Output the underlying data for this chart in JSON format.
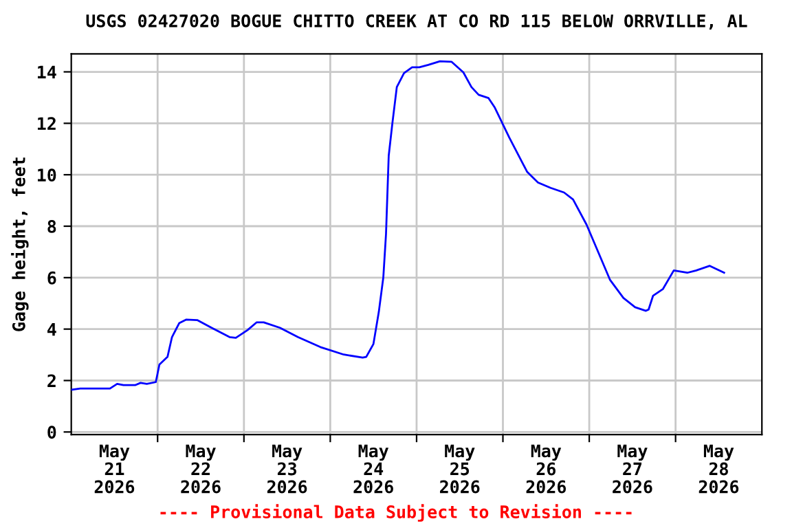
{
  "chart_data": {
    "type": "line",
    "title": "USGS 02427020 BOGUE CHITTO CREEK AT CO RD 115 BELOW ORRVILLE, AL",
    "ylabel": "Gage height, feet",
    "annotations": [
      "---- Provisional Data Subject to Revision ----"
    ],
    "x": [
      "2026-05-21T00:00",
      "2026-05-21T02:30",
      "2026-05-21T10:45",
      "2026-05-21T12:45",
      "2026-05-21T14:30",
      "2026-05-21T17:45",
      "2026-05-21T19:15",
      "2026-05-21T21:00",
      "2026-05-21T23:30",
      "2026-05-22T00:30",
      "2026-05-22T02:45",
      "2026-05-22T04:00",
      "2026-05-22T06:00",
      "2026-05-22T08:00",
      "2026-05-22T11:00",
      "2026-05-22T15:00",
      "2026-05-22T20:00",
      "2026-05-22T21:45",
      "2026-05-23T01:00",
      "2026-05-23T03:30",
      "2026-05-23T05:30",
      "2026-05-23T10:00",
      "2026-05-23T15:00",
      "2026-05-23T21:15",
      "2026-05-24T03:45",
      "2026-05-24T09:00",
      "2026-05-24T10:00",
      "2026-05-24T12:00",
      "2026-05-24T13:30",
      "2026-05-24T14:45",
      "2026-05-24T15:30",
      "2026-05-24T16:15",
      "2026-05-24T17:15",
      "2026-05-24T18:30",
      "2026-05-24T20:30",
      "2026-05-24T22:45",
      "2026-05-25T00:45",
      "2026-05-25T03:15",
      "2026-05-25T06:30",
      "2026-05-25T09:45",
      "2026-05-25T13:00",
      "2026-05-25T15:15",
      "2026-05-25T17:15",
      "2026-05-25T20:00",
      "2026-05-25T21:45",
      "2026-05-26T01:45",
      "2026-05-26T06:45",
      "2026-05-26T09:45",
      "2026-05-26T13:15",
      "2026-05-26T17:00",
      "2026-05-26T19:30",
      "2026-05-26T23:15",
      "2026-05-27T02:30",
      "2026-05-27T05:45",
      "2026-05-27T09:30",
      "2026-05-27T12:45",
      "2026-05-27T15:45",
      "2026-05-27T16:30",
      "2026-05-27T17:45",
      "2026-05-27T20:30",
      "2026-05-27T23:30",
      "2026-05-28T03:15",
      "2026-05-28T05:45",
      "2026-05-28T09:30",
      "2026-05-28T13:30"
    ],
    "series": [
      {
        "color": "#0000ff",
        "values": [
          1.64,
          1.69,
          1.69,
          1.87,
          1.82,
          1.82,
          1.91,
          1.87,
          1.94,
          2.62,
          2.92,
          3.69,
          4.23,
          4.37,
          4.35,
          4.05,
          3.69,
          3.66,
          3.96,
          4.26,
          4.26,
          4.05,
          3.69,
          3.3,
          3.01,
          2.89,
          2.92,
          3.42,
          4.67,
          6.01,
          7.7,
          10.74,
          11.98,
          13.41,
          13.95,
          14.18,
          14.18,
          14.27,
          14.41,
          14.39,
          13.98,
          13.41,
          13.11,
          12.98,
          12.61,
          11.45,
          10.11,
          9.7,
          9.49,
          9.31,
          9.04,
          8.06,
          6.99,
          5.92,
          5.21,
          4.85,
          4.71,
          4.76,
          5.3,
          5.56,
          6.28,
          6.19,
          6.28,
          6.46,
          6.19
        ]
      }
    ],
    "xlim": [
      "2026-05-21T00:00",
      "2026-05-29T00:00"
    ],
    "xticks": [
      {
        "value": "2026-05-21T12:00",
        "label": "May\n21\n2026"
      },
      {
        "value": "2026-05-22T00:00",
        "label": null
      },
      {
        "value": "2026-05-22T12:00",
        "label": "May\n22\n2026"
      },
      {
        "value": "2026-05-23T00:00",
        "label": null
      },
      {
        "value": "2026-05-23T12:00",
        "label": "May\n23\n2026"
      },
      {
        "value": "2026-05-24T00:00",
        "label": null
      },
      {
        "value": "2026-05-24T12:00",
        "label": "May\n24\n2026"
      },
      {
        "value": "2026-05-25T00:00",
        "label": null
      },
      {
        "value": "2026-05-25T12:00",
        "label": "May\n25\n2026"
      },
      {
        "value": "2026-05-26T00:00",
        "label": null
      },
      {
        "value": "2026-05-26T12:00",
        "label": "May\n26\n2026"
      },
      {
        "value": "2026-05-27T00:00",
        "label": null
      },
      {
        "value": "2026-05-27T12:00",
        "label": "May\n27\n2026"
      },
      {
        "value": "2026-05-28T00:00",
        "label": null
      },
      {
        "value": "2026-05-28T12:00",
        "label": "May\n28\n2026"
      }
    ],
    "ylim": [
      -0.1,
      14.7
    ],
    "yticks": [
      0,
      2,
      4,
      6,
      8,
      10,
      12,
      14
    ],
    "grid": true,
    "legend": false,
    "marker": "none",
    "line_style": "solid"
  }
}
